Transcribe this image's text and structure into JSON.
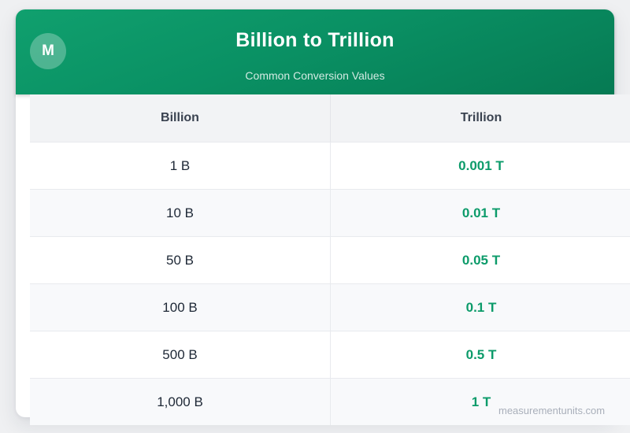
{
  "header": {
    "logo_letter": "M",
    "title": "Billion to Trillion",
    "subtitle": "Common Conversion Values"
  },
  "table": {
    "columns": [
      "Billion",
      "Trillion"
    ],
    "rows": [
      {
        "billion": "1 B",
        "trillion": "0.001 T"
      },
      {
        "billion": "10 B",
        "trillion": "0.01 T"
      },
      {
        "billion": "50 B",
        "trillion": "0.05 T"
      },
      {
        "billion": "100 B",
        "trillion": "0.1 T"
      },
      {
        "billion": "500 B",
        "trillion": "0.5 T"
      },
      {
        "billion": "1,000 B",
        "trillion": "1 T"
      }
    ]
  },
  "footer": {
    "watermark": "measurementunits.com"
  },
  "colors": {
    "header_gradient_top": "#10a06e",
    "header_gradient_bottom": "#067a53",
    "accent_green": "#0c9b6a",
    "page_background": "#eff0f2",
    "table_header_background": "#f2f3f5",
    "row_stripe_background": "#f8f9fb",
    "dark_text": "#1e2836",
    "watermark_text": "#a9afba"
  }
}
